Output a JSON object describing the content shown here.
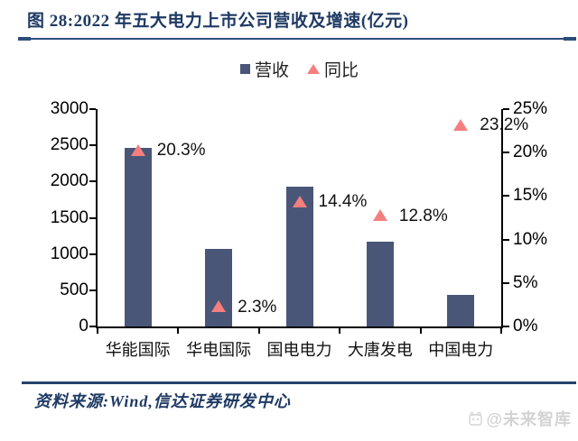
{
  "figure": {
    "title": "图 28:2022 年五大电力上市公司营收及增速(亿元)",
    "source": "资料来源:Wind,信达证券研发中心",
    "watermark": "@未来智库"
  },
  "legend": {
    "revenue": "营收",
    "yoy": "同比"
  },
  "colors": {
    "bar": "#4a5677",
    "marker": "#f57f7f",
    "title_navy": "#1e3a64",
    "rule_navy": "#2c4c7c",
    "axis_black": "#000000",
    "watermark_gray": "#d3d3d3"
  },
  "chart_data": {
    "type": "bar",
    "subtype": "combo-bar-scatter-dual-axis",
    "title": "2022 年五大电力上市公司营收及增速(亿元)",
    "categories": [
      "华能国际",
      "华电国际",
      "国电电力",
      "大唐发电",
      "中国电力"
    ],
    "series": [
      {
        "name": "营收",
        "type": "bar",
        "axis": "left",
        "values": [
          2467,
          1068,
          1924,
          1167,
          437
        ]
      },
      {
        "name": "同比",
        "type": "scatter",
        "axis": "right",
        "marker": "triangle",
        "values": [
          20.3,
          2.3,
          14.4,
          12.8,
          23.2
        ],
        "labels": [
          "20.3%",
          "2.3%",
          "14.4%",
          "12.8%",
          "23.2%"
        ]
      }
    ],
    "left_axis": {
      "min": 0,
      "max": 3000,
      "step": 500,
      "ticks": [
        "0",
        "500",
        "1000",
        "1500",
        "2000",
        "2500",
        "3000"
      ]
    },
    "right_axis": {
      "min": 0,
      "max": 25,
      "step": 5,
      "ticks": [
        "0%",
        "5%",
        "10%",
        "15%",
        "20%",
        "25%"
      ]
    },
    "grid": false,
    "legend_position": "top-center",
    "xlabel": "",
    "ylabel_left": "亿元",
    "ylabel_right": "%"
  }
}
